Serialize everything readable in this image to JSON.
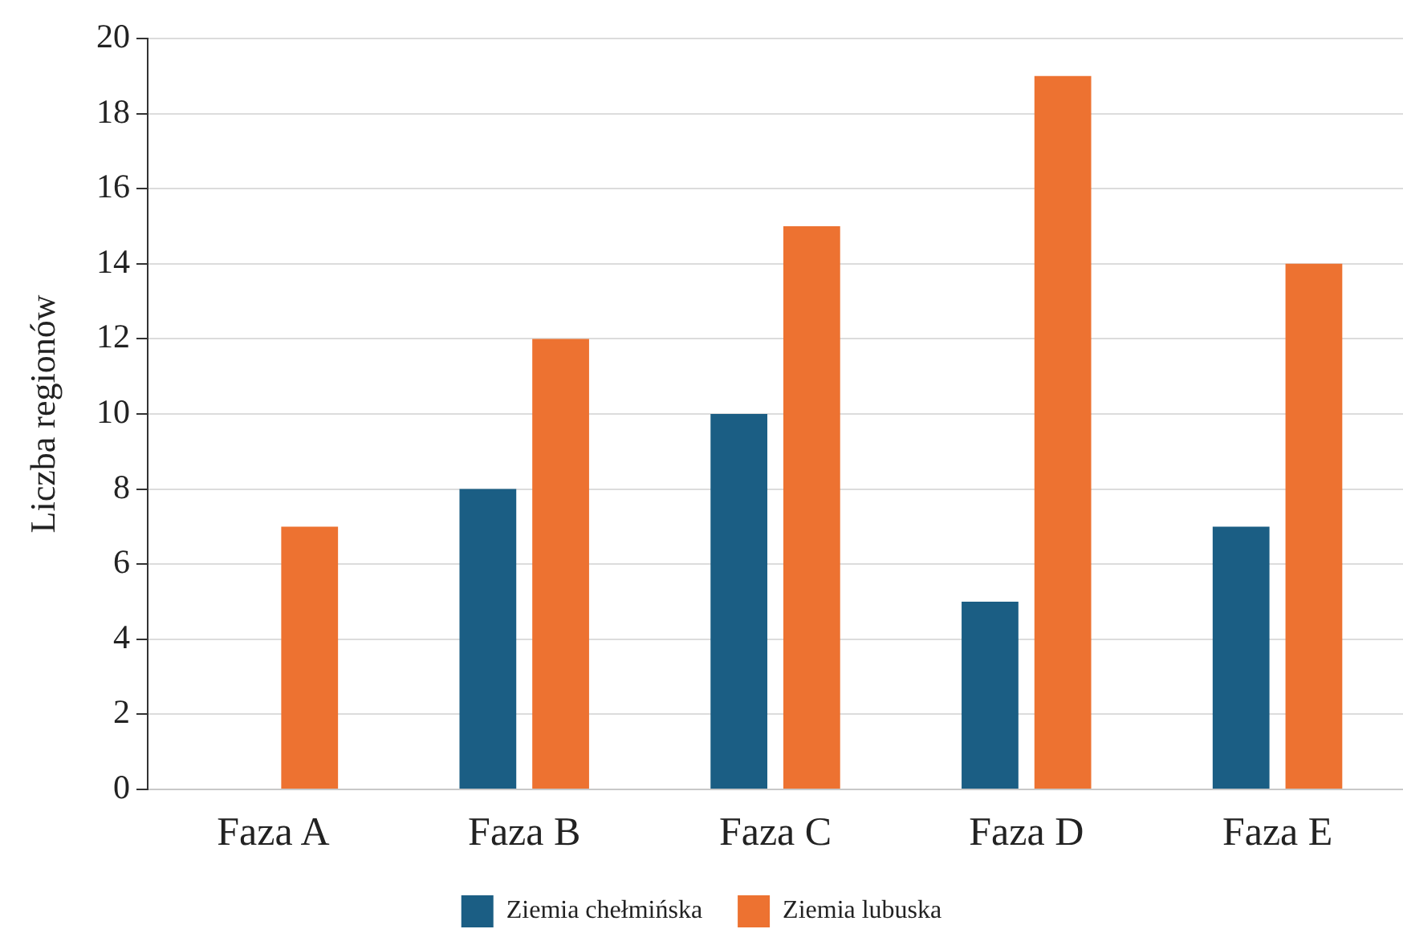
{
  "chart_data": {
    "type": "bar",
    "categories": [
      "Faza A",
      "Faza B",
      "Faza C",
      "Faza D",
      "Faza E"
    ],
    "ylabel": "Liczba regionów",
    "series": [
      {
        "name": "Ziemia chełmińska",
        "color": "#1b5e84",
        "values": [
          0,
          8,
          10,
          5,
          7
        ]
      },
      {
        "name": "Ziemia lubuska",
        "color": "#ed7231",
        "values": [
          7,
          12,
          15,
          19,
          14
        ]
      }
    ],
    "ylim": [
      0,
      20
    ],
    "yticks": [
      0,
      2,
      4,
      6,
      8,
      10,
      12,
      14,
      16,
      18,
      20
    ],
    "grid": "y",
    "legend": "bottom"
  }
}
